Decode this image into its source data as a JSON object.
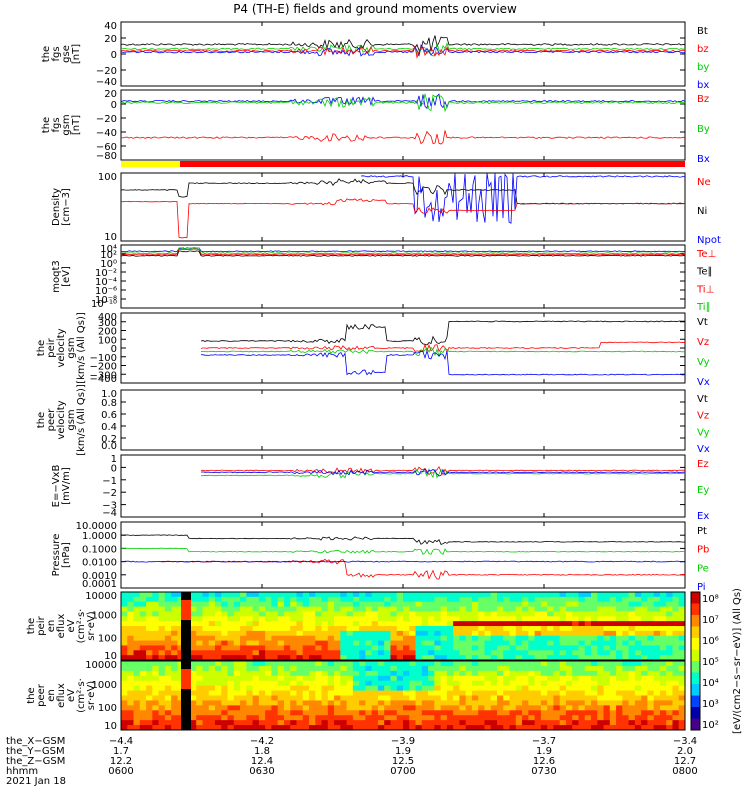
{
  "chart_data": {
    "type": "line",
    "title": "P4 (TH-E) fields and ground moments overview",
    "panels": [
      {
        "id": "p1",
        "ylabel": [
          "the",
          "fgs",
          "gse",
          "[nT]"
        ],
        "ylim": [
          -40,
          40
        ],
        "ticks": [
          "40",
          "20",
          "0",
          "−20",
          "−40"
        ],
        "legend": [
          {
            "name": "Bt",
            "color": "#000000"
          },
          {
            "name": "bz",
            "color": "#ff0000"
          },
          {
            "name": "by",
            "color": "#00cc00"
          },
          {
            "name": "bx",
            "color": "#0000ff"
          }
        ]
      },
      {
        "id": "p2",
        "ylabel": [
          "the",
          "fgs",
          "gsm",
          "[nT]"
        ],
        "ylim": [
          -90,
          30
        ],
        "ticks": [
          "20",
          "0",
          "−20",
          "−40",
          "−60",
          "−80"
        ],
        "legend": [
          {
            "name": "Bz",
            "color": "#ff0000"
          },
          {
            "name": "By",
            "color": "#00cc00"
          },
          {
            "name": "Bx",
            "color": "#0000ff"
          }
        ]
      },
      {
        "id": "p3",
        "ylabel": [
          "Density",
          "[cm−3]"
        ],
        "scale": "log",
        "ticks": [
          "100",
          "10"
        ],
        "legend": [
          {
            "name": "Ne",
            "color": "#ff0000"
          },
          {
            "name": "Ni",
            "color": "#000000"
          },
          {
            "name": "Npot",
            "color": "#0000ff"
          }
        ]
      },
      {
        "id": "p4",
        "ylabel": [
          "moqt3",
          "[eV]"
        ],
        "scale": "log",
        "ticks": [
          "10⁴",
          "10²",
          "10⁰",
          "10⁻²",
          "10⁻⁴",
          "10⁻⁶",
          "10⁻⁸",
          "10⁻¹⁰"
        ],
        "legend": [
          {
            "name": "Te⊥",
            "color": "#ff0000"
          },
          {
            "name": "Te∥",
            "color": "#000000"
          },
          {
            "name": "Ti⊥",
            "color": "#ff0000"
          },
          {
            "name": "Ti∥",
            "color": "#00cc00"
          }
        ]
      },
      {
        "id": "p5",
        "ylabel": [
          "the",
          "peir",
          "velocity",
          "gsm",
          "[km/s (All Qs)]"
        ],
        "ylim": [
          -400,
          400
        ],
        "ticks": [
          "400",
          "300",
          "200",
          "100",
          "0",
          "−100",
          "−200",
          "−300",
          "−400"
        ],
        "legend": [
          {
            "name": "Vt",
            "color": "#000000"
          },
          {
            "name": "Vz",
            "color": "#ff0000"
          },
          {
            "name": "Vy",
            "color": "#00cc00"
          },
          {
            "name": "Vx",
            "color": "#0000ff"
          }
        ]
      },
      {
        "id": "p6",
        "ylabel": [
          "the",
          "peer",
          "velocity",
          "gsm",
          "[km/s (All Qs)]"
        ],
        "ylim": [
          0,
          1
        ],
        "ticks": [
          "1.0",
          "0.8",
          "0.6",
          "0.4",
          "0.2",
          "0.0"
        ],
        "legend": [
          {
            "name": "Vt",
            "color": "#000000"
          },
          {
            "name": "Vz",
            "color": "#ff0000"
          },
          {
            "name": "Vy",
            "color": "#00cc00"
          },
          {
            "name": "Vx",
            "color": "#0000ff"
          }
        ]
      },
      {
        "id": "p7",
        "ylabel": [
          "E=−VxB",
          "[mV/m]"
        ],
        "ylim": [
          -4,
          1
        ],
        "ticks": [
          "1",
          "0",
          "−1",
          "−2",
          "−3",
          "−4"
        ],
        "legend": [
          {
            "name": "Ez",
            "color": "#ff0000"
          },
          {
            "name": "Ey",
            "color": "#00cc00"
          },
          {
            "name": "Ex",
            "color": "#0000ff"
          }
        ]
      },
      {
        "id": "p8",
        "ylabel": [
          "Pressure",
          "[nPa]"
        ],
        "scale": "log",
        "ticks": [
          "10.0000",
          "1.0000",
          "0.1000",
          "0.0100",
          "0.0010",
          "0.0001"
        ],
        "legend": [
          {
            "name": "Pt",
            "color": "#000000"
          },
          {
            "name": "Pb",
            "color": "#ff0000"
          },
          {
            "name": "Pe",
            "color": "#00cc00"
          },
          {
            "name": "Pi",
            "color": "#0000ff"
          }
        ]
      },
      {
        "id": "p9",
        "ylabel": [
          "the",
          "peir",
          "en",
          "eflux",
          "eV",
          "(cm²·s·",
          "sr·eV)"
        ],
        "ticks": [
          "10000",
          "1000",
          "100",
          "10"
        ],
        "type": "heatmap"
      },
      {
        "id": "p10",
        "ylabel": [
          "the",
          "peer",
          "en",
          "eflux",
          "eV",
          "(cm²·s·",
          "sr·eV)"
        ],
        "ticks": [
          "10000",
          "1000",
          "100",
          "10"
        ],
        "type": "heatmap"
      }
    ],
    "colorbar": {
      "label": "[eV/(cm2−s−sr−eV)] (All Qs)",
      "ticks": [
        "10⁸",
        "10⁷",
        "10⁶",
        "10⁵",
        "10⁴",
        "10³",
        "10²"
      ]
    },
    "x_rows": [
      {
        "label": "the_X−GSM",
        "values": [
          "−4.4",
          "−4.2",
          "−3.9",
          "−3.7",
          "−3.4"
        ]
      },
      {
        "label": "the_Y−GSM",
        "values": [
          "1.7",
          "1.8",
          "1.9",
          "1.9",
          "2.0"
        ]
      },
      {
        "label": "the_Z−GSM",
        "values": [
          "12.2",
          "12.4",
          "12.5",
          "12.6",
          "12.7"
        ]
      },
      {
        "label": "hhmm",
        "values": [
          "0600",
          "0630",
          "0700",
          "0730",
          "0800"
        ]
      }
    ],
    "date_label": "2021 Jan 18"
  }
}
